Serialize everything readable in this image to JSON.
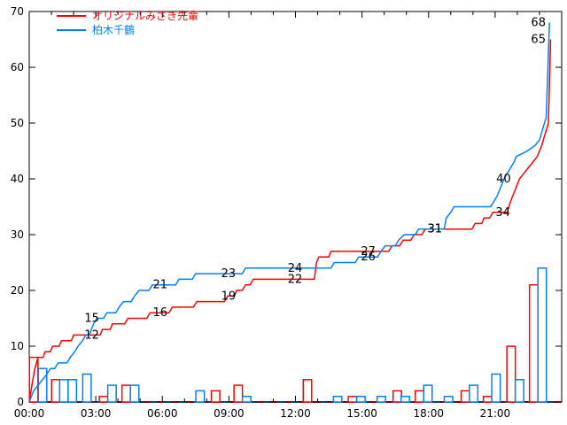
{
  "chart_data": {
    "type": "line",
    "title": "",
    "xlabel": "",
    "ylabel": "",
    "x_axis": {
      "range_hours": [
        0,
        24
      ],
      "major_tick_hours": [
        0,
        3,
        6,
        9,
        12,
        15,
        18,
        21,
        24
      ],
      "minor_tick_step_hours": 1,
      "tick_labels": [
        "00:00",
        "03:00",
        "06:00",
        "09:00",
        "12:00",
        "15:00",
        "18:00",
        "21:00"
      ],
      "tick_label_hours": [
        0,
        3,
        6,
        9,
        12,
        15,
        18,
        21
      ]
    },
    "y_axis": {
      "range": [
        0,
        70
      ],
      "major_ticks": [
        0,
        10,
        20,
        30,
        40,
        50,
        60,
        70
      ],
      "tick_labels": [
        "0",
        "10",
        "20",
        "30",
        "40",
        "50",
        "60",
        "70"
      ]
    },
    "grid": "off",
    "legend_position": "top-left-inside",
    "bar_width_hours": 0.38,
    "colors": {
      "axis": "#000000",
      "background": "#ffffff",
      "label_text": "#000000"
    },
    "series": [
      {
        "name": "オリジナルみさき先輩",
        "color": "#ff0000",
        "style": "cumulative step line + interval boxes",
        "points": [
          [
            0,
            0
          ],
          [
            0.12,
            3
          ],
          [
            0.25,
            6
          ],
          [
            0.4,
            8
          ],
          [
            0.62,
            8
          ],
          [
            0.72,
            9
          ],
          [
            0.95,
            9
          ],
          [
            1.05,
            10
          ],
          [
            1.35,
            10
          ],
          [
            1.45,
            11
          ],
          [
            1.9,
            11
          ],
          [
            2.0,
            12
          ],
          [
            3.2,
            12
          ],
          [
            3.3,
            13
          ],
          [
            3.65,
            13
          ],
          [
            3.75,
            14
          ],
          [
            4.3,
            14
          ],
          [
            4.45,
            15
          ],
          [
            5.3,
            15
          ],
          [
            5.45,
            16
          ],
          [
            6.3,
            16
          ],
          [
            6.45,
            17
          ],
          [
            7.4,
            17
          ],
          [
            7.55,
            18
          ],
          [
            8.8,
            18
          ],
          [
            8.95,
            19
          ],
          [
            9.25,
            19
          ],
          [
            9.35,
            20
          ],
          [
            9.6,
            20
          ],
          [
            9.75,
            21
          ],
          [
            9.95,
            21
          ],
          [
            10.1,
            22
          ],
          [
            12.85,
            22
          ],
          [
            12.95,
            25
          ],
          [
            13.05,
            26
          ],
          [
            13.5,
            26
          ],
          [
            13.6,
            27
          ],
          [
            16.2,
            27
          ],
          [
            16.35,
            28
          ],
          [
            16.7,
            28
          ],
          [
            16.85,
            29
          ],
          [
            17.2,
            29
          ],
          [
            17.35,
            30
          ],
          [
            17.7,
            30
          ],
          [
            17.85,
            31
          ],
          [
            19.95,
            31
          ],
          [
            20.1,
            32
          ],
          [
            20.4,
            32
          ],
          [
            20.5,
            33
          ],
          [
            20.75,
            33
          ],
          [
            20.9,
            34
          ],
          [
            21.55,
            34
          ],
          [
            21.7,
            36
          ],
          [
            21.9,
            38
          ],
          [
            22.1,
            40
          ],
          [
            22.3,
            41
          ],
          [
            22.5,
            42
          ],
          [
            22.7,
            43
          ],
          [
            22.9,
            44
          ],
          [
            23.1,
            46
          ],
          [
            23.25,
            48
          ],
          [
            23.4,
            50
          ],
          [
            23.5,
            65
          ]
        ],
        "value_labels": [
          {
            "t": 2.82,
            "v": 12,
            "text": "12"
          },
          {
            "t": 5.9,
            "v": 16,
            "text": "16"
          },
          {
            "t": 8.98,
            "v": 19,
            "text": "19"
          },
          {
            "t": 11.98,
            "v": 22,
            "text": "22"
          },
          {
            "t": 15.28,
            "v": 27,
            "text": "27"
          },
          {
            "t": 18.28,
            "v": 31,
            "text": "31"
          },
          {
            "t": 21.35,
            "v": 34,
            "text": "34"
          },
          {
            "t": 22.95,
            "v": 65,
            "text": "65"
          }
        ],
        "bars": [
          [
            0.2,
            8
          ],
          [
            1.2,
            4
          ],
          [
            3.35,
            1
          ],
          [
            4.37,
            3
          ],
          [
            8.4,
            2
          ],
          [
            9.42,
            3
          ],
          [
            12.54,
            4
          ],
          [
            14.57,
            1
          ],
          [
            16.59,
            2
          ],
          [
            17.59,
            2
          ],
          [
            19.66,
            2
          ],
          [
            20.66,
            1
          ],
          [
            21.72,
            10
          ],
          [
            22.74,
            21
          ]
        ]
      },
      {
        "name": "柏木千鶴",
        "color": "#0080ff",
        "style": "cumulative step line + interval boxes",
        "points": [
          [
            0,
            0
          ],
          [
            0.2,
            2
          ],
          [
            0.4,
            3
          ],
          [
            0.6,
            4
          ],
          [
            0.8,
            5
          ],
          [
            0.95,
            6
          ],
          [
            1.15,
            6
          ],
          [
            1.3,
            7
          ],
          [
            1.7,
            7
          ],
          [
            1.85,
            8
          ],
          [
            2.05,
            9
          ],
          [
            2.2,
            10
          ],
          [
            2.4,
            11
          ],
          [
            2.55,
            12
          ],
          [
            2.7,
            12
          ],
          [
            2.8,
            13
          ],
          [
            2.9,
            14
          ],
          [
            3.05,
            15
          ],
          [
            3.35,
            15
          ],
          [
            3.5,
            16
          ],
          [
            3.9,
            16
          ],
          [
            4.05,
            17
          ],
          [
            4.25,
            18
          ],
          [
            4.6,
            18
          ],
          [
            4.75,
            19
          ],
          [
            4.95,
            20
          ],
          [
            5.4,
            20
          ],
          [
            5.55,
            21
          ],
          [
            6.6,
            21
          ],
          [
            6.75,
            22
          ],
          [
            7.35,
            22
          ],
          [
            7.5,
            23
          ],
          [
            9.6,
            23
          ],
          [
            9.75,
            24
          ],
          [
            13.6,
            24
          ],
          [
            13.75,
            25
          ],
          [
            14.7,
            25
          ],
          [
            14.85,
            26
          ],
          [
            15.7,
            26
          ],
          [
            15.85,
            27
          ],
          [
            16.05,
            28
          ],
          [
            16.5,
            28
          ],
          [
            16.65,
            29
          ],
          [
            16.9,
            30
          ],
          [
            17.4,
            30
          ],
          [
            17.55,
            31
          ],
          [
            18.7,
            31
          ],
          [
            18.8,
            33
          ],
          [
            19.0,
            34
          ],
          [
            19.15,
            35
          ],
          [
            20.8,
            35
          ],
          [
            20.95,
            36
          ],
          [
            21.1,
            37
          ],
          [
            21.2,
            38
          ],
          [
            21.3,
            39
          ],
          [
            21.4,
            40
          ],
          [
            21.55,
            41
          ],
          [
            21.7,
            42
          ],
          [
            21.85,
            43
          ],
          [
            21.95,
            44
          ],
          [
            22.45,
            45
          ],
          [
            22.8,
            46
          ],
          [
            23.0,
            47
          ],
          [
            23.15,
            49
          ],
          [
            23.3,
            51
          ],
          [
            23.45,
            68
          ]
        ],
        "value_labels": [
          {
            "t": 2.82,
            "v": 15,
            "text": "15"
          },
          {
            "t": 5.9,
            "v": 21,
            "text": "21"
          },
          {
            "t": 8.98,
            "v": 23,
            "text": "23"
          },
          {
            "t": 11.98,
            "v": 24,
            "text": "24"
          },
          {
            "t": 15.28,
            "v": 26,
            "text": "26"
          },
          {
            "t": 18.28,
            "v": 31,
            "text": "31"
          },
          {
            "t": 21.38,
            "v": 40,
            "text": "40"
          },
          {
            "t": 22.95,
            "v": 68,
            "text": "68"
          }
        ],
        "bars": [
          [
            0.6,
            6
          ],
          [
            1.56,
            4
          ],
          [
            1.94,
            4
          ],
          [
            2.6,
            5
          ],
          [
            3.73,
            3
          ],
          [
            4.75,
            3
          ],
          [
            7.7,
            2
          ],
          [
            9.8,
            1
          ],
          [
            13.9,
            1
          ],
          [
            14.95,
            1
          ],
          [
            15.87,
            1
          ],
          [
            16.95,
            1
          ],
          [
            17.97,
            3
          ],
          [
            18.9,
            1
          ],
          [
            20.03,
            3
          ],
          [
            21.04,
            5
          ],
          [
            22.1,
            4
          ],
          [
            23.12,
            24
          ]
        ]
      }
    ]
  },
  "legend": {
    "items": [
      {
        "label": "オリジナルみさき先輩",
        "color": "#ff0000"
      },
      {
        "label": "柏木千鶴",
        "color": "#0080ff"
      }
    ]
  }
}
